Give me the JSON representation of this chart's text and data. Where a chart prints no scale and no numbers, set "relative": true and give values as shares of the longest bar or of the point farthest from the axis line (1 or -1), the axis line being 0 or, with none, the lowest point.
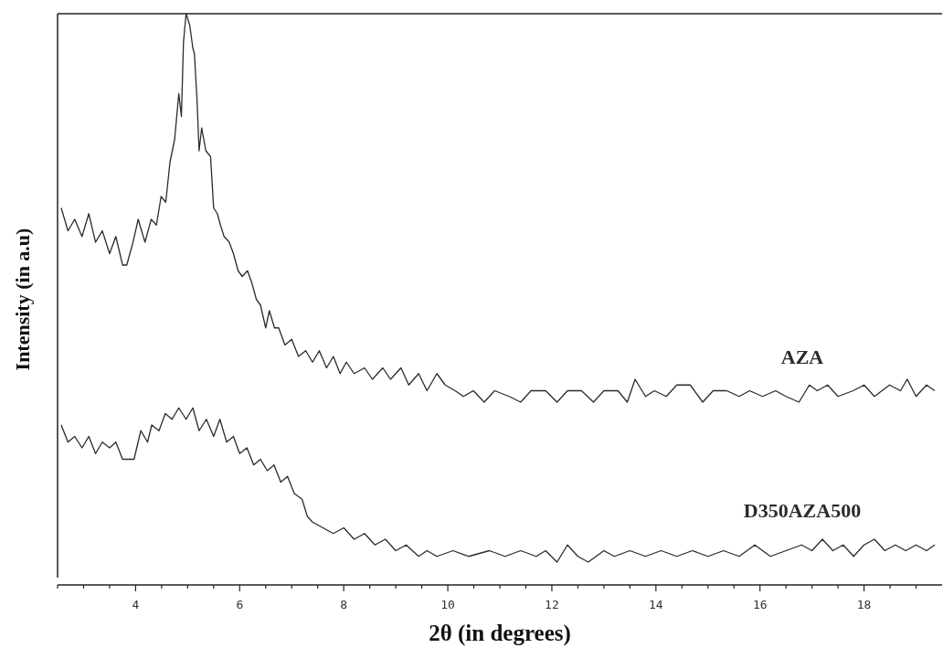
{
  "chart_data": {
    "type": "line",
    "relative": true,
    "xlabel": "2θ (in degrees)",
    "ylabel": "Intensity (in a.u)",
    "xlim": [
      2.5,
      19.5
    ],
    "tick_labels": "x",
    "grid": false,
    "marker": "none",
    "line_style": "solid",
    "xticks": [
      {
        "value": 2.5,
        "label": null
      },
      {
        "value": 3,
        "label": null
      },
      {
        "value": 3.5,
        "label": null
      },
      4,
      {
        "value": 4.5,
        "label": null
      },
      {
        "value": 5,
        "label": null
      },
      {
        "value": 5.5,
        "label": null
      },
      6,
      {
        "value": 6.5,
        "label": null
      },
      {
        "value": 7,
        "label": null
      },
      {
        "value": 7.5,
        "label": null
      },
      8,
      {
        "value": 8.5,
        "label": null
      },
      {
        "value": 9,
        "label": null
      },
      {
        "value": 9.5,
        "label": null
      },
      10,
      {
        "value": 10.5,
        "label": null
      },
      {
        "value": 11,
        "label": null
      },
      {
        "value": 11.5,
        "label": null
      },
      12,
      {
        "value": 12.5,
        "label": null
      },
      {
        "value": 13,
        "label": null
      },
      {
        "value": 13.5,
        "label": null
      },
      14,
      {
        "value": 14.5,
        "label": null
      },
      {
        "value": 15,
        "label": null
      },
      {
        "value": 15.5,
        "label": null
      },
      16,
      {
        "value": 16.5,
        "label": null
      },
      {
        "value": 17,
        "label": null
      },
      {
        "value": 17.5,
        "label": null
      },
      18,
      {
        "value": 18.5,
        "label": null
      },
      {
        "value": 19,
        "label": null
      }
    ],
    "series": [
      {
        "name": "AZA",
        "color": "#2b2b2b",
        "x": [
          2.57,
          2.7,
          2.83,
          2.97,
          3.1,
          3.23,
          3.36,
          3.5,
          3.62,
          3.75,
          3.83,
          3.95,
          4.05,
          4.18,
          4.3,
          4.4,
          4.49,
          4.58,
          4.66,
          4.75,
          4.83,
          4.88,
          4.92,
          4.97,
          5.04,
          5.1,
          5.13,
          5.18,
          5.22,
          5.27,
          5.35,
          5.44,
          5.5,
          5.57,
          5.63,
          5.7,
          5.8,
          5.88,
          5.97,
          6.05,
          6.15,
          6.23,
          6.32,
          6.4,
          6.5,
          6.57,
          6.67,
          6.75,
          6.87,
          7.0,
          7.13,
          7.27,
          7.4,
          7.53,
          7.67,
          7.8,
          7.93,
          8.05,
          8.2,
          8.4,
          8.55,
          8.75,
          8.9,
          9.1,
          9.25,
          9.44,
          9.6,
          9.79,
          9.95,
          10.14,
          10.3,
          10.49,
          10.7,
          10.9,
          11.18,
          11.4,
          11.6,
          11.88,
          12.1,
          12.3,
          12.57,
          12.8,
          13.0,
          13.27,
          13.45,
          13.6,
          13.8,
          13.97,
          14.2,
          14.4,
          14.66,
          14.9,
          15.1,
          15.36,
          15.6,
          15.8,
          16.05,
          16.3,
          16.5,
          16.75,
          16.95,
          17.1,
          17.3,
          17.5,
          17.79,
          18.0,
          18.2,
          18.49,
          18.7,
          18.83,
          19.0,
          19.2,
          19.36
        ],
        "values": [
          0.66,
          0.62,
          0.64,
          0.61,
          0.65,
          0.6,
          0.62,
          0.58,
          0.61,
          0.56,
          0.56,
          0.6,
          0.64,
          0.6,
          0.64,
          0.63,
          0.68,
          0.67,
          0.74,
          0.78,
          0.86,
          0.82,
          0.95,
          1.0,
          0.98,
          0.94,
          0.93,
          0.85,
          0.76,
          0.8,
          0.76,
          0.75,
          0.66,
          0.65,
          0.63,
          0.61,
          0.6,
          0.58,
          0.55,
          0.54,
          0.55,
          0.53,
          0.5,
          0.49,
          0.45,
          0.48,
          0.45,
          0.45,
          0.42,
          0.43,
          0.4,
          0.41,
          0.39,
          0.41,
          0.38,
          0.4,
          0.37,
          0.39,
          0.37,
          0.38,
          0.36,
          0.38,
          0.36,
          0.38,
          0.35,
          0.37,
          0.34,
          0.37,
          0.35,
          0.34,
          0.33,
          0.34,
          0.32,
          0.34,
          0.33,
          0.32,
          0.34,
          0.34,
          0.32,
          0.34,
          0.34,
          0.32,
          0.34,
          0.34,
          0.32,
          0.36,
          0.33,
          0.34,
          0.33,
          0.35,
          0.35,
          0.32,
          0.34,
          0.34,
          0.33,
          0.34,
          0.33,
          0.34,
          0.33,
          0.32,
          0.35,
          0.34,
          0.35,
          0.33,
          0.34,
          0.35,
          0.33,
          0.35,
          0.34,
          0.36,
          0.33,
          0.35,
          0.34
        ]
      },
      {
        "name": "D350AZA500",
        "color": "#2b2b2b",
        "x": [
          2.57,
          2.7,
          2.83,
          2.97,
          3.1,
          3.23,
          3.36,
          3.5,
          3.62,
          3.75,
          3.97,
          4.1,
          4.23,
          4.31,
          4.45,
          4.57,
          4.7,
          4.83,
          4.97,
          5.1,
          5.22,
          5.36,
          5.5,
          5.62,
          5.75,
          5.88,
          6.0,
          6.14,
          6.27,
          6.4,
          6.53,
          6.66,
          6.79,
          6.92,
          7.05,
          7.2,
          7.3,
          7.4,
          7.6,
          7.8,
          8.0,
          8.2,
          8.4,
          8.6,
          8.8,
          9.0,
          9.2,
          9.44,
          9.6,
          9.79,
          10.1,
          10.4,
          10.8,
          11.1,
          11.4,
          11.7,
          11.88,
          12.1,
          12.3,
          12.5,
          12.7,
          13.0,
          13.2,
          13.5,
          13.8,
          14.1,
          14.4,
          14.7,
          15.0,
          15.3,
          15.6,
          15.9,
          16.2,
          16.5,
          16.8,
          17.0,
          17.2,
          17.4,
          17.6,
          17.8,
          18.0,
          18.2,
          18.4,
          18.6,
          18.8,
          19.0,
          19.2,
          19.36
        ],
        "values": [
          0.28,
          0.25,
          0.26,
          0.24,
          0.26,
          0.23,
          0.25,
          0.24,
          0.25,
          0.22,
          0.22,
          0.27,
          0.25,
          0.28,
          0.27,
          0.3,
          0.29,
          0.31,
          0.29,
          0.31,
          0.27,
          0.29,
          0.26,
          0.29,
          0.25,
          0.26,
          0.23,
          0.24,
          0.21,
          0.22,
          0.2,
          0.21,
          0.18,
          0.19,
          0.16,
          0.15,
          0.12,
          0.11,
          0.1,
          0.09,
          0.1,
          0.08,
          0.09,
          0.07,
          0.08,
          0.06,
          0.07,
          0.05,
          0.06,
          0.05,
          0.06,
          0.05,
          0.06,
          0.05,
          0.06,
          0.05,
          0.06,
          0.04,
          0.07,
          0.05,
          0.04,
          0.06,
          0.05,
          0.06,
          0.05,
          0.06,
          0.05,
          0.06,
          0.05,
          0.06,
          0.05,
          0.07,
          0.05,
          0.06,
          0.07,
          0.06,
          0.08,
          0.06,
          0.07,
          0.05,
          0.07,
          0.08,
          0.06,
          0.07,
          0.06,
          0.07,
          0.06,
          0.07
        ]
      }
    ]
  }
}
